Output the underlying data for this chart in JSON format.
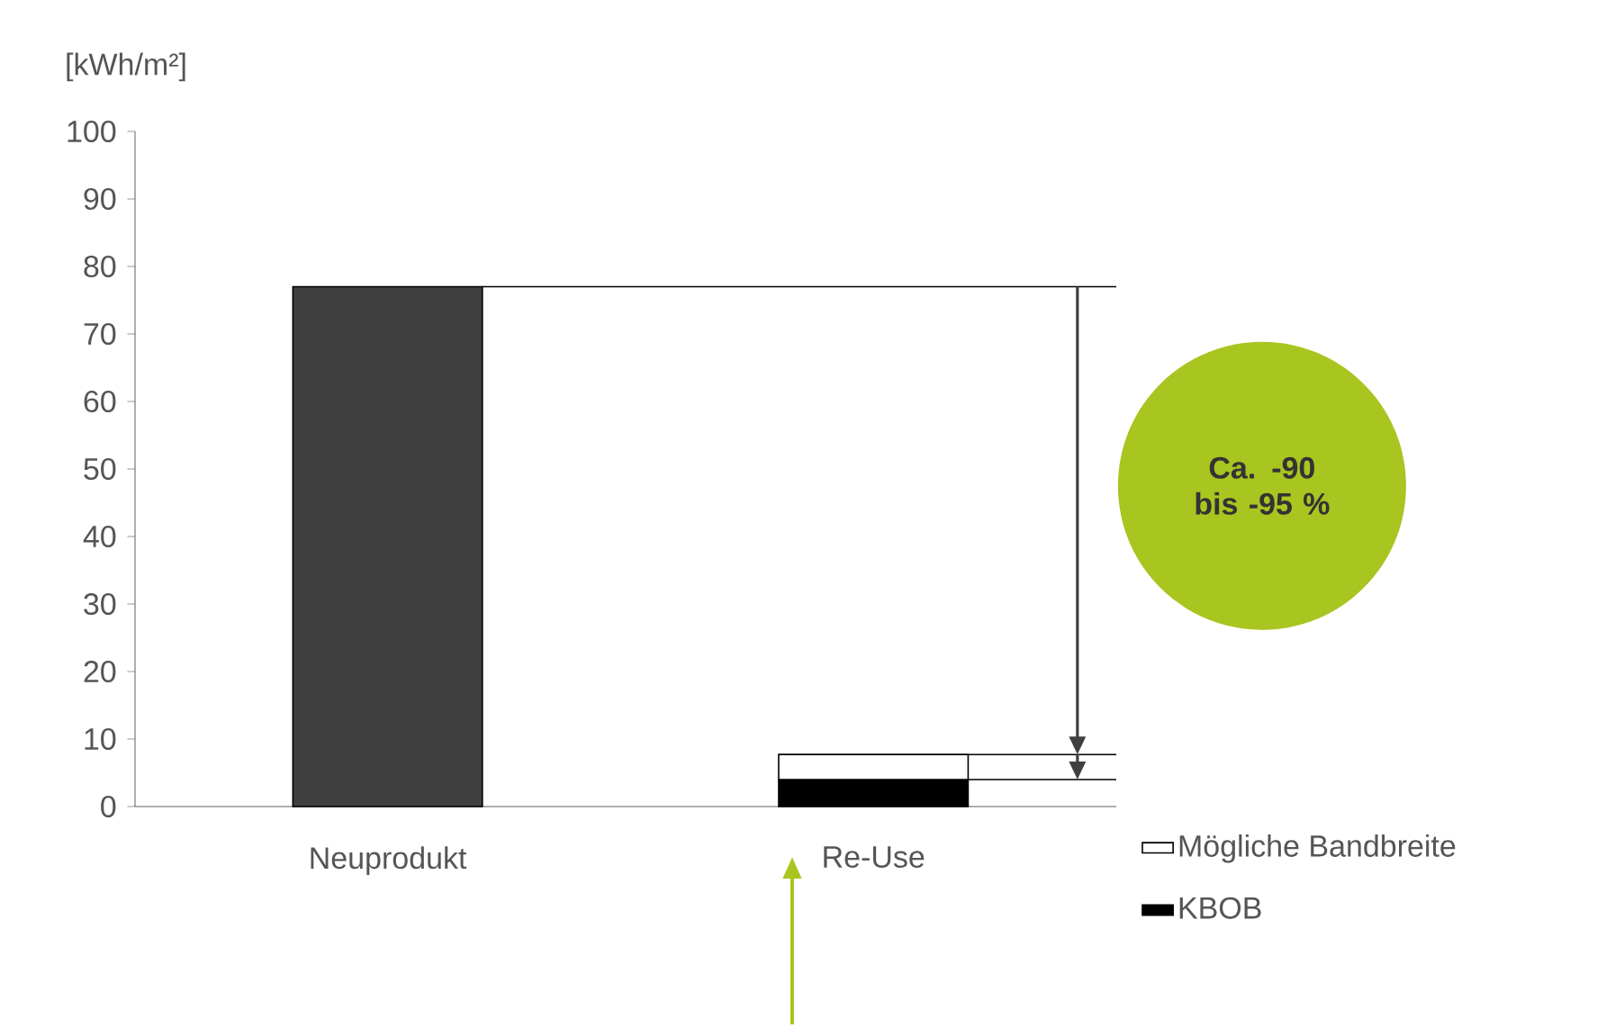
{
  "chart_data": {
    "type": "bar",
    "stacked": true,
    "ylabel": "[kWh/m²]",
    "categories": [
      "Neuprodukt",
      "Re-Use"
    ],
    "series": [
      {
        "name": "KBOB",
        "color": "#000000",
        "colors": [
          "#404040",
          "#000000"
        ],
        "values": [
          77,
          4
        ]
      },
      {
        "name": "Mögliche Bandbreite",
        "color": "#ffffff",
        "values": [
          null,
          3.7
        ]
      }
    ],
    "ylim": [
      0,
      100
    ],
    "yticks": [
      0,
      10,
      20,
      30,
      40,
      50,
      60,
      70,
      80,
      90,
      100
    ],
    "ref_lines": [
      {
        "axis": "y",
        "value": 77
      },
      {
        "axis": "y",
        "value": 7.7
      },
      {
        "axis": "y",
        "value": 4
      }
    ],
    "annotations": [
      "Ca. -90 bis -95 %"
    ],
    "legend": "bottom right",
    "grid": false
  }
}
